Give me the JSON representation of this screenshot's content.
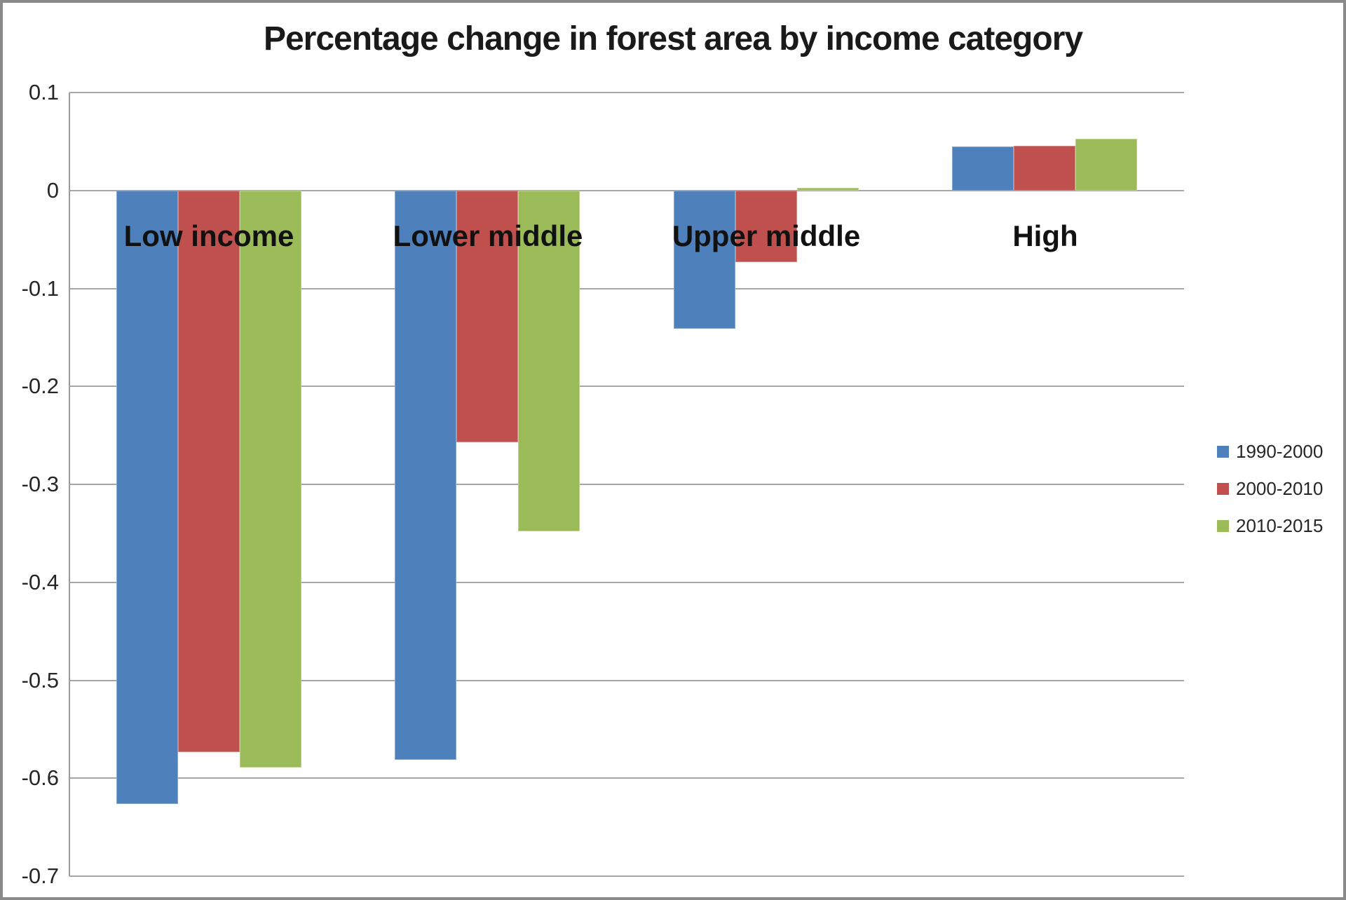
{
  "chart_data": {
    "type": "bar",
    "title": "Percentage change in forest area by income category",
    "categories": [
      "Low income",
      "Lower middle",
      "Upper middle",
      "High"
    ],
    "series": [
      {
        "name": "1990-2000",
        "color": "#4e80bc",
        "border_color": "#86a9d2",
        "values": [
          -0.626,
          -0.581,
          -0.141,
          0.045
        ]
      },
      {
        "name": "2000-2010",
        "color": "#c0504d",
        "border_color": "#d48a88",
        "values": [
          -0.573,
          -0.257,
          -0.073,
          0.046
        ]
      },
      {
        "name": "2010-2015",
        "color": "#9bbb59",
        "border_color": "#bcd28e",
        "values": [
          -0.589,
          -0.348,
          0.003,
          0.053
        ]
      }
    ],
    "y_axis": {
      "min": -0.7,
      "max": 0.1,
      "step": 0.1,
      "tick_labels": [
        "0.1",
        "0",
        "-0.1",
        "-0.2",
        "-0.3",
        "-0.4",
        "-0.5",
        "-0.6",
        "-0.7"
      ]
    },
    "legend_position": "right",
    "grid": true,
    "grid_color": "#a6a6a6",
    "axis_color": "#9a9a9a",
    "background_color": "#ffffff"
  }
}
